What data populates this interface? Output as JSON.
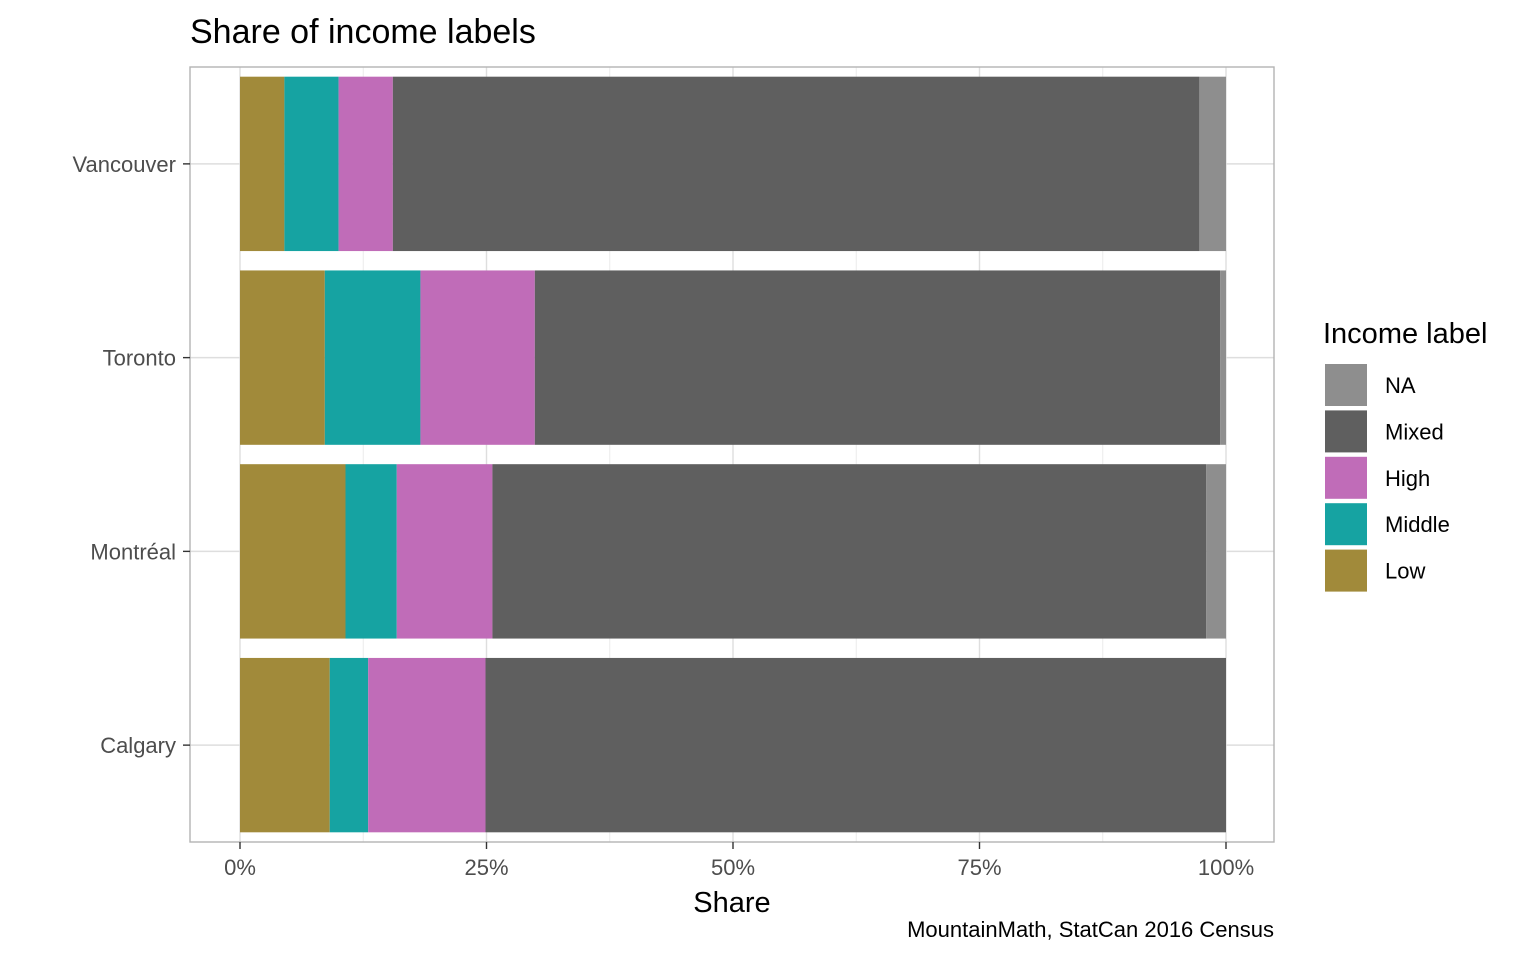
{
  "chart_data": {
    "type": "bar",
    "orientation": "horizontal",
    "stacked": true,
    "title": "Share of income labels",
    "xlabel": "Share",
    "ylabel": "",
    "caption": "MountainMath, StatCan 2016 Census",
    "xlim": [
      0,
      1
    ],
    "x_ticks": [
      0,
      0.25,
      0.5,
      0.75,
      1.0
    ],
    "x_tick_labels": [
      "0%",
      "25%",
      "50%",
      "75%",
      "100%"
    ],
    "categories": [
      "Vancouver",
      "Toronto",
      "Montréal",
      "Calgary"
    ],
    "series": [
      {
        "name": "Low",
        "color": "#A18A3A",
        "values": [
          0.045,
          0.086,
          0.107,
          0.091
        ]
      },
      {
        "name": "Middle",
        "color": "#16A3A2",
        "values": [
          0.055,
          0.097,
          0.052,
          0.039
        ]
      },
      {
        "name": "High",
        "color": "#C06CB8",
        "values": [
          0.055,
          0.116,
          0.097,
          0.119
        ]
      },
      {
        "name": "Mixed",
        "color": "#5F5F5F",
        "values": [
          0.818,
          0.695,
          0.724,
          0.751
        ]
      },
      {
        "name": "NA",
        "color": "#8E8E8E",
        "values": [
          0.027,
          0.006,
          0.02,
          0.0
        ]
      }
    ],
    "legend": {
      "title": "Income label",
      "placement": "right",
      "order": [
        "NA",
        "Mixed",
        "High",
        "Middle",
        "Low"
      ]
    },
    "grid": true,
    "panel_border": true
  }
}
